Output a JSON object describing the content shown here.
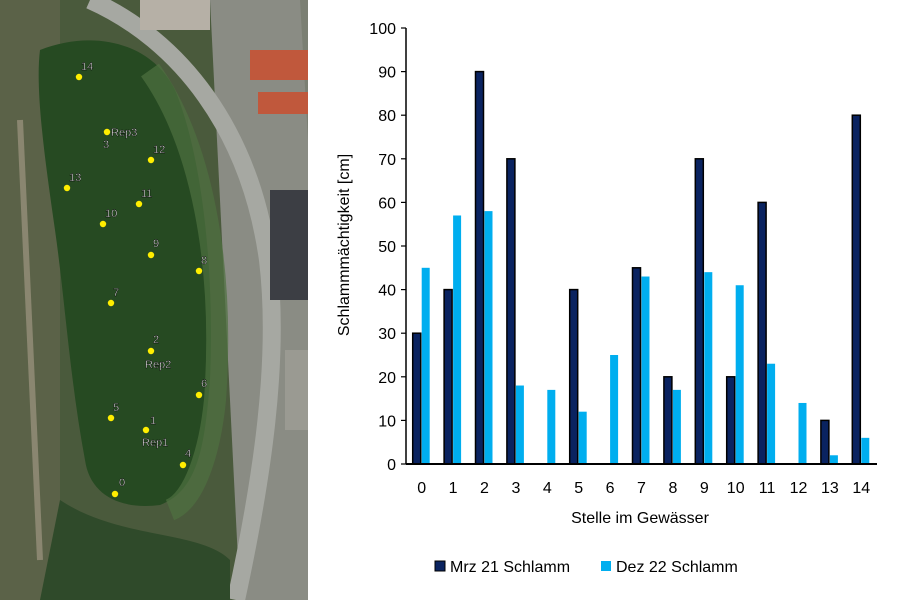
{
  "map": {
    "markers": [
      "0",
      "1",
      "2",
      "3",
      "4",
      "5",
      "6",
      "7",
      "8",
      "9",
      "10",
      "11",
      "12",
      "13",
      "14"
    ],
    "rep_labels": [
      "Rep1",
      "Rep2",
      "Rep3"
    ],
    "marker_color": "#ffee00"
  },
  "chart_data": {
    "type": "bar",
    "title": "",
    "xlabel": "Stelle im Gewässer",
    "ylabel": "Schlammmächtigkeit [cm]",
    "ylim": [
      0,
      100
    ],
    "yticks": [
      0,
      10,
      20,
      30,
      40,
      50,
      60,
      70,
      80,
      90,
      100
    ],
    "categories": [
      "0",
      "1",
      "2",
      "3",
      "4",
      "5",
      "6",
      "7",
      "8",
      "9",
      "10",
      "11",
      "12",
      "13",
      "14"
    ],
    "series": [
      {
        "name": "Mrz 21 Schlamm",
        "color": "#0a2360",
        "values": [
          30,
          40,
          90,
          70,
          0,
          40,
          0,
          45,
          20,
          70,
          20,
          60,
          0,
          10,
          80
        ]
      },
      {
        "name": "Dez 22 Schlamm",
        "color": "#00aeef",
        "values": [
          45,
          57,
          58,
          18,
          17,
          12,
          25,
          43,
          17,
          44,
          41,
          23,
          14,
          2,
          6
        ]
      }
    ],
    "grid": false,
    "legend": "bottom"
  }
}
